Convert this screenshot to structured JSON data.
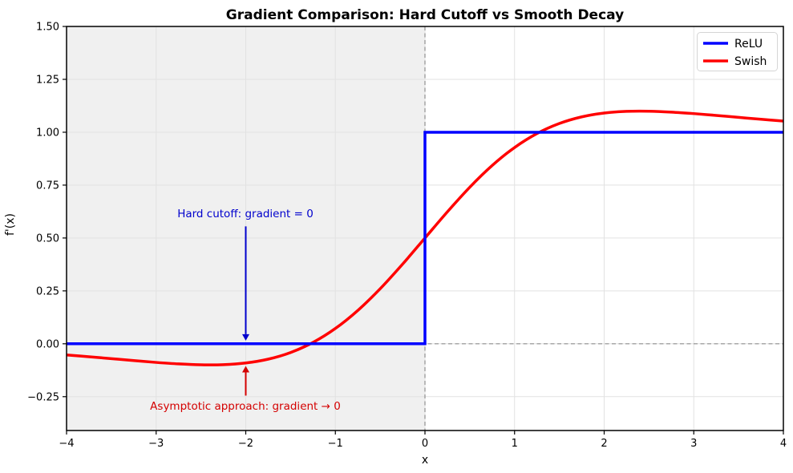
{
  "chart_data": {
    "type": "line",
    "title": "Gradient Comparison: Hard Cutoff vs Smooth Decay",
    "xlabel": "x",
    "ylabel": "f'(x)",
    "xlim": [
      -4,
      4
    ],
    "ylim": [
      -0.41,
      1.5
    ],
    "xticks": [
      -4,
      -3,
      -2,
      -1,
      0,
      1,
      2,
      3,
      4
    ],
    "xtick_labels": [
      "−4",
      "−3",
      "−2",
      "−1",
      "0",
      "1",
      "2",
      "3",
      "4"
    ],
    "yticks": [
      -0.25,
      0,
      0.25,
      0.5,
      0.75,
      1,
      1.25,
      1.5
    ],
    "ytick_labels": [
      "−0.25",
      "0.00",
      "0.25",
      "0.50",
      "0.75",
      "1.00",
      "1.25",
      "1.50"
    ],
    "grid": true,
    "grid_color": "#e2e2e2",
    "background_shading": {
      "x_from": -4,
      "x_to": 0,
      "color": "#f0f0f0"
    },
    "reference_lines": [
      {
        "orientation": "vertical",
        "x": 0,
        "style": "dashed",
        "color": "#8f8f8f"
      },
      {
        "orientation": "horizontal",
        "y": 0,
        "style": "dashed",
        "color": "#8f8f8f"
      }
    ],
    "legend": {
      "position": "upper right",
      "items": [
        {
          "label": "ReLU",
          "color": "#0000ff"
        },
        {
          "label": "Swish",
          "color": "#ff0000"
        }
      ]
    },
    "series": [
      {
        "name": "ReLU",
        "color": "#0000ff",
        "zorder": 2,
        "smooth": false,
        "x": [
          -4,
          0,
          0,
          4
        ],
        "y": [
          0,
          0,
          1,
          1
        ]
      },
      {
        "name": "Swish",
        "color": "#ff0000",
        "zorder": 1,
        "smooth": true,
        "x": [
          -4,
          -3.75,
          -3.5,
          -3.25,
          -3,
          -2.75,
          -2.5,
          -2.25,
          -2,
          -1.75,
          -1.5,
          -1.25,
          -1,
          -0.75,
          -0.5,
          -0.25,
          0,
          0.25,
          0.5,
          0.75,
          1,
          1.25,
          1.5,
          1.75,
          2,
          2.25,
          2.5,
          2.75,
          3,
          3.25,
          3.5,
          3.75,
          4
        ],
        "y": [
          -0.0527,
          -0.0612,
          -0.0703,
          -0.0795,
          -0.0881,
          -0.0952,
          -0.0994,
          -0.0987,
          -0.0908,
          -0.0727,
          -0.0413,
          0.0063,
          0.0723,
          0.1574,
          0.26,
          0.3763,
          0.5,
          0.6237,
          0.74,
          0.8426,
          0.9277,
          0.9937,
          1.0413,
          1.0727,
          1.0908,
          1.0987,
          1.0994,
          1.0952,
          1.0881,
          1.0795,
          1.0703,
          1.0612,
          1.0527
        ]
      }
    ],
    "annotations": [
      {
        "text": "Hard cutoff: gradient = 0",
        "color": "#0000cd",
        "x": -2,
        "arrow_from_y": 0.555,
        "arrow_to_y": 0.015
      },
      {
        "text": "Asymptotic approach: gradient → 0",
        "color": "#d40000",
        "x": -2,
        "arrow_from_y": -0.245,
        "arrow_to_y": -0.105
      }
    ]
  }
}
